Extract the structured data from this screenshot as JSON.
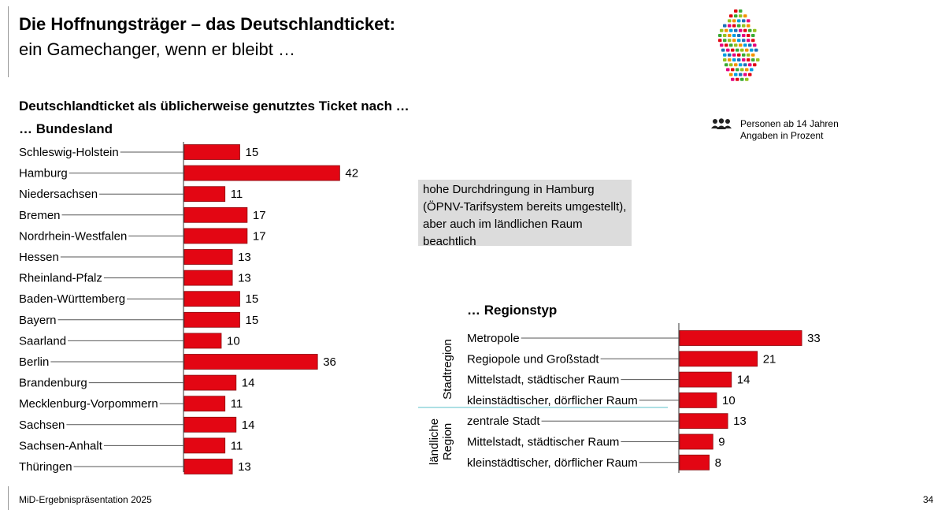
{
  "header": {
    "title": "Die Hoffnungsträger – das Deutschlandticket:",
    "subtitle": "ein Gamechanger, wenn er bleibt …"
  },
  "section_title": "Deutschlandticket als üblicherweise genutztes Ticket nach …",
  "legend_note": {
    "icon": "people-group-icon",
    "line1": "Personen ab 14 Jahren",
    "line2": "Angaben in Prozent"
  },
  "info_box": {
    "text": "hohe Durchdringung in Hamburg (ÖPNV-Tarifsystem bereits umgestellt), aber auch im ländlichen Raum beachtlich"
  },
  "colors": {
    "bar": "#e30613",
    "bar_border": "#8a0a0f",
    "box": "#dcdcdc",
    "divider": "#5bc0c8"
  },
  "footer": {
    "text": "MiD-Ergebnispräsentation 2025",
    "page": "34"
  },
  "chart_data": [
    {
      "type": "bar",
      "orientation": "horizontal",
      "title": "… Bundesland",
      "categories": [
        "Schleswig-Holstein",
        "Hamburg",
        "Niedersachsen",
        "Bremen",
        "Nordrhein-Westfalen",
        "Hessen",
        "Rheinland-Pfalz",
        "Baden-Württemberg",
        "Bayern",
        "Saarland",
        "Berlin",
        "Brandenburg",
        "Mecklenburg-Vorpommern",
        "Sachsen",
        "Sachsen-Anhalt",
        "Thüringen"
      ],
      "values": [
        15,
        42,
        11,
        17,
        17,
        13,
        13,
        15,
        15,
        10,
        36,
        14,
        11,
        14,
        11,
        13
      ],
      "unit": "%"
    },
    {
      "type": "bar",
      "orientation": "horizontal",
      "title": "… Regionstyp",
      "groups": [
        {
          "label": "Stadtregion",
          "categories": [
            "Metropole",
            "Regiopole und Großstadt",
            "Mittelstadt, städtischer Raum",
            "kleinstädtischer, dörflicher Raum"
          ],
          "values": [
            33,
            21,
            14,
            10
          ]
        },
        {
          "label": "ländliche Region",
          "label_lines": [
            "ländliche",
            "Region"
          ],
          "categories": [
            "zentrale Stadt",
            "Mittelstadt, städtischer Raum",
            "kleinstädtischer, dörflicher Raum"
          ],
          "values": [
            13,
            9,
            8
          ]
        }
      ],
      "unit": "%"
    }
  ]
}
